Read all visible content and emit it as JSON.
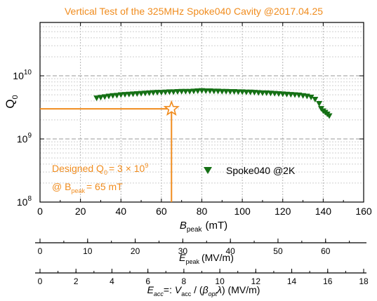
{
  "chart_data": {
    "type": "scatter",
    "title": "Vertical Test of the 325MHz Spoke040 Cavity @2017.04.25",
    "xlabel": "B",
    "xlabel_sub": "peak",
    "xlabel_unit": "(mT)",
    "ylabel": "Q",
    "ylabel_sub": "0",
    "yscale": "log",
    "xlim": [
      0,
      160
    ],
    "ylim": [
      100000000,
      70000000000
    ],
    "grid": true,
    "legend_position": "center-right",
    "xticks": [
      "0",
      "20",
      "40",
      "60",
      "80",
      "100",
      "120",
      "140",
      "160"
    ],
    "yticks": [
      {
        "base": "10",
        "exp": "8",
        "value": 100000000
      },
      {
        "base": "10",
        "exp": "9",
        "value": 1000000000
      },
      {
        "base": "10",
        "exp": "10",
        "value": 10000000000
      }
    ],
    "series": [
      {
        "name": "Spoke040 @2K",
        "color": "#157015",
        "marker": "triangle-down",
        "points": [
          [
            28,
            4400000000.0
          ],
          [
            30,
            4500000000.0
          ],
          [
            32,
            4600000000.0
          ],
          [
            34,
            4700000000.0
          ],
          [
            36,
            4800000000.0
          ],
          [
            38,
            4850000000.0
          ],
          [
            40,
            4950000000.0
          ],
          [
            42,
            5000000000.0
          ],
          [
            44,
            5050000000.0
          ],
          [
            46,
            5100000000.0
          ],
          [
            48,
            5150000000.0
          ],
          [
            50,
            5200000000.0
          ],
          [
            52,
            5250000000.0
          ],
          [
            54,
            5300000000.0
          ],
          [
            56,
            5350000000.0
          ],
          [
            58,
            5400000000.0
          ],
          [
            60,
            5400000000.0
          ],
          [
            62,
            5450000000.0
          ],
          [
            64,
            5500000000.0
          ],
          [
            66,
            5500000000.0
          ],
          [
            68,
            5550000000.0
          ],
          [
            70,
            5600000000.0
          ],
          [
            72,
            5600000000.0
          ],
          [
            74,
            5600000000.0
          ],
          [
            76,
            5650000000.0
          ],
          [
            78,
            5700000000.0
          ],
          [
            80,
            5750000000.0
          ],
          [
            82,
            5700000000.0
          ],
          [
            84,
            5700000000.0
          ],
          [
            86,
            5650000000.0
          ],
          [
            88,
            5650000000.0
          ],
          [
            90,
            5600000000.0
          ],
          [
            92,
            5600000000.0
          ],
          [
            94,
            5550000000.0
          ],
          [
            96,
            5550000000.0
          ],
          [
            98,
            5500000000.0
          ],
          [
            100,
            5500000000.0
          ],
          [
            102,
            5450000000.0
          ],
          [
            104,
            5450000000.0
          ],
          [
            106,
            5400000000.0
          ],
          [
            108,
            5350000000.0
          ],
          [
            110,
            5300000000.0
          ],
          [
            112,
            5300000000.0
          ],
          [
            114,
            5250000000.0
          ],
          [
            116,
            5200000000.0
          ],
          [
            118,
            5150000000.0
          ],
          [
            120,
            5100000000.0
          ],
          [
            122,
            5050000000.0
          ],
          [
            124,
            5000000000.0
          ],
          [
            126,
            4950000000.0
          ],
          [
            128,
            4900000000.0
          ],
          [
            130,
            4800000000.0
          ],
          [
            132,
            4700000000.0
          ],
          [
            134,
            4550000000.0
          ],
          [
            136,
            4200000000.0
          ],
          [
            138,
            3600000000.0
          ],
          [
            139,
            3000000000.0
          ],
          [
            140,
            2750000000.0
          ],
          [
            141,
            2600000000.0
          ],
          [
            142,
            2450000000.0
          ],
          [
            143,
            2300000000.0
          ]
        ]
      }
    ],
    "design_point": {
      "x": 65,
      "y": 3000000000,
      "color": "#f08c1e"
    },
    "annotation": {
      "color": "#f08c1e",
      "line1_a": "Designed Q",
      "line1_sub": "0",
      "line1_b": "= 3 × 10",
      "line1_sup": "9",
      "line2_a": "@ B",
      "line2_sub": "peak",
      "line2_b": "= 65 mT"
    },
    "secondary_axes": [
      {
        "range": [
          0,
          68
        ],
        "ticks": [
          "0",
          "10",
          "20",
          "30",
          "40",
          "50",
          "60"
        ],
        "minor_step": 5,
        "label": "E",
        "label_sub": "peak",
        "label_unit": "(MV/m)"
      },
      {
        "range": [
          0,
          18
        ],
        "ticks": [
          "0",
          "2",
          "4",
          "6",
          "8",
          "10",
          "12",
          "14",
          "16",
          "18"
        ],
        "minor_step": 1,
        "label_parts": [
          {
            "t": "E",
            "style": "italic"
          },
          {
            "t": "acc",
            "style": "italic-sub"
          },
          {
            "t": "=: ",
            "style": "normal"
          },
          {
            "t": "V",
            "style": "italic"
          },
          {
            "t": "acc",
            "style": "sub"
          },
          {
            "t": " / (",
            "style": "normal"
          },
          {
            "t": "β",
            "style": "italic"
          },
          {
            "t": "opt",
            "style": "italic-sub"
          },
          {
            "t": "λ",
            "style": "italic"
          },
          {
            "t": ") (MV/m)",
            "style": "normal"
          }
        ]
      }
    ]
  }
}
